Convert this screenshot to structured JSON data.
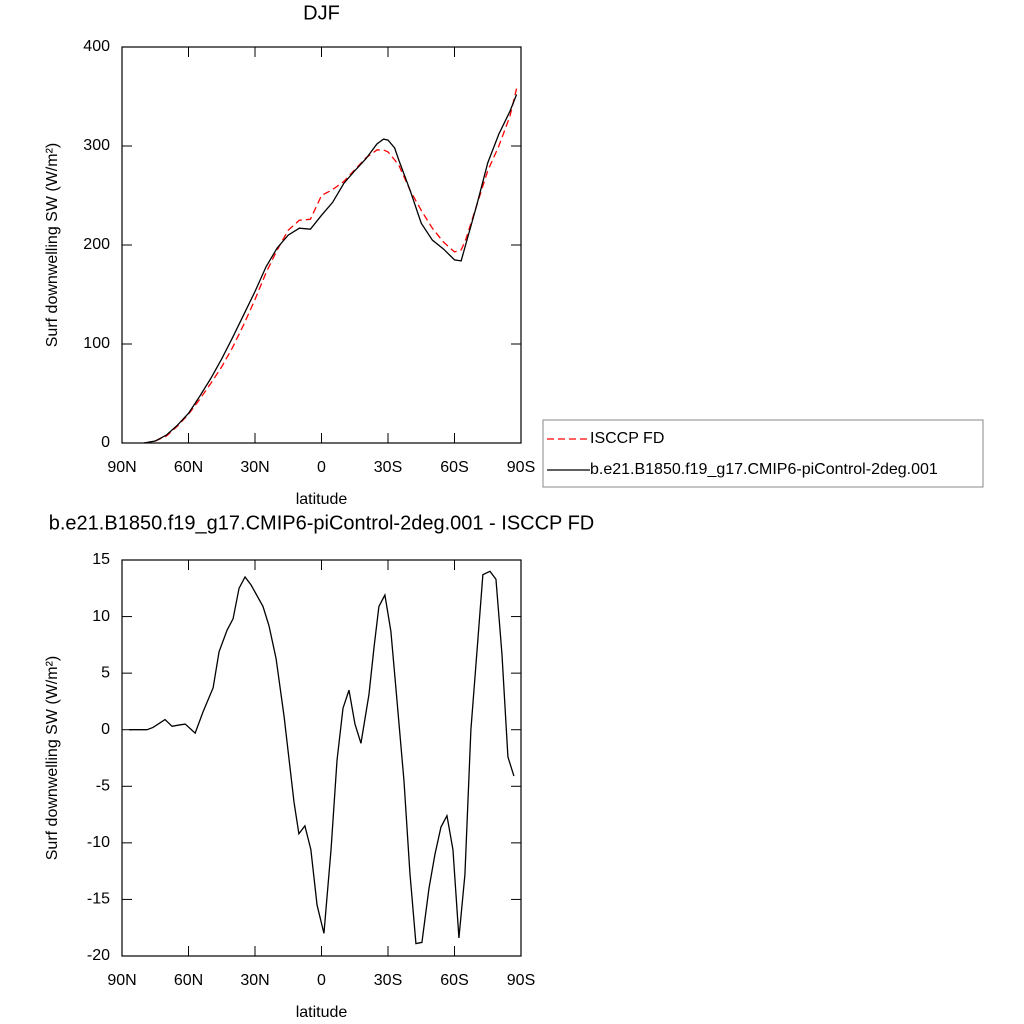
{
  "chart_data": [
    {
      "type": "line",
      "title": "DJF",
      "xlabel": "latitude",
      "ylabel": "Surf downwelling SW (W/m²)",
      "x": [
        80,
        75,
        70,
        65,
        60,
        55,
        50,
        45,
        40,
        35,
        30,
        25,
        20,
        15,
        10,
        5,
        0,
        -5,
        -10,
        -15,
        -20,
        -25,
        -28,
        -30,
        -33,
        -35,
        -40,
        -45,
        -50,
        -55,
        -60,
        -63,
        -65,
        -70,
        -75,
        -80,
        -85,
        -88
      ],
      "series": [
        {
          "name": "ISCCP FD",
          "color": "#ff0000",
          "style": "dashed",
          "values": [
            0,
            2,
            7,
            17,
            29,
            44,
            60,
            77,
            97,
            120,
            145,
            172,
            195,
            215,
            225,
            226,
            250,
            256,
            264,
            276,
            288,
            296,
            296,
            294,
            286,
            280,
            255,
            235,
            217,
            203,
            193,
            195,
            205,
            240,
            275,
            300,
            330,
            358
          ]
        },
        {
          "name": "b.e21.B1850.f19_g17.CMIP6-piControl-2deg.001",
          "color": "#000000",
          "style": "solid",
          "values": [
            0,
            2,
            8,
            18,
            30,
            47,
            65,
            85,
            107,
            130,
            153,
            178,
            197,
            210,
            217,
            216,
            230,
            243,
            262,
            275,
            287,
            302,
            307,
            306,
            298,
            285,
            255,
            222,
            205,
            196,
            185,
            184,
            200,
            240,
            283,
            312,
            335,
            352
          ]
        }
      ],
      "xlim": [
        90,
        -90
      ],
      "xticks": [
        {
          "value": 90,
          "label": "90N"
        },
        {
          "value": 60,
          "label": "60N"
        },
        {
          "value": 30,
          "label": "30N"
        },
        0,
        {
          "value": -30,
          "label": "30S"
        },
        {
          "value": -60,
          "label": "60S"
        },
        {
          "value": -90,
          "label": "90S"
        }
      ],
      "ylim": [
        0,
        400
      ],
      "yticks": [
        0,
        100,
        200,
        300,
        400
      ],
      "legend": "right"
    },
    {
      "type": "line",
      "title": "b.e21.B1850.f19_g17.CMIP6-piControl-2deg.001 - ISCCP FD",
      "xlabel": "latitude",
      "ylabel": "Surf downwelling SW (W/m²)",
      "x": [
        86.8,
        78.7,
        76,
        70.6,
        67.4,
        64.7,
        61.5,
        57,
        53.4,
        48.9,
        46.2,
        42.6,
        39.9,
        37.2,
        34.5,
        31.8,
        26.4,
        23.7,
        20.5,
        16.9,
        12.4,
        10.2,
        7.5,
        4.8,
        2,
        -1.1,
        -4.3,
        -7,
        -9.7,
        -12.4,
        -15.1,
        -17.8,
        -21.4,
        -23.7,
        -25.9,
        -28.6,
        -31.3,
        -34,
        -37.2,
        -39.9,
        -42.6,
        -45.3,
        -48.5,
        -51.2,
        -53.9,
        -56.6,
        -59.3,
        -62,
        -64.7,
        -67.4,
        -70.6,
        -72.8,
        -76,
        -78.7,
        -81.4,
        -84.1,
        -86.8
      ],
      "series": [
        {
          "color": "#000000",
          "style": "solid",
          "values": [
            0,
            0,
            0.2,
            0.9,
            0.3,
            0.4,
            0.5,
            -0.3,
            1.6,
            3.7,
            6.9,
            8.8,
            9.8,
            12.5,
            13.5,
            12.8,
            10.9,
            9.2,
            6.3,
            1.2,
            -6.4,
            -9.2,
            -8.5,
            -10.6,
            -15.5,
            -18,
            -10.6,
            -2.7,
            1.9,
            3.5,
            0.5,
            -1.2,
            3.1,
            7.3,
            10.9,
            11.9,
            8.7,
            2.7,
            -4.5,
            -12.7,
            -18.9,
            -18.8,
            -14,
            -11,
            -8.6,
            -7.6,
            -10.6,
            -18.4,
            -12.8,
            0,
            8.1,
            13.7,
            14,
            13.3,
            6.7,
            -2.4,
            -4.1
          ]
        }
      ],
      "xlim": [
        90,
        -90
      ],
      "xticks": [
        {
          "value": 90,
          "label": "90N"
        },
        {
          "value": 60,
          "label": "60N"
        },
        {
          "value": 30,
          "label": "30N"
        },
        0,
        {
          "value": -30,
          "label": "30S"
        },
        {
          "value": -60,
          "label": "60S"
        },
        {
          "value": -90,
          "label": "90S"
        }
      ],
      "ylim": [
        -20,
        15
      ],
      "yticks": [
        -20,
        -15,
        -10,
        -5,
        0,
        5,
        10,
        15
      ]
    }
  ]
}
